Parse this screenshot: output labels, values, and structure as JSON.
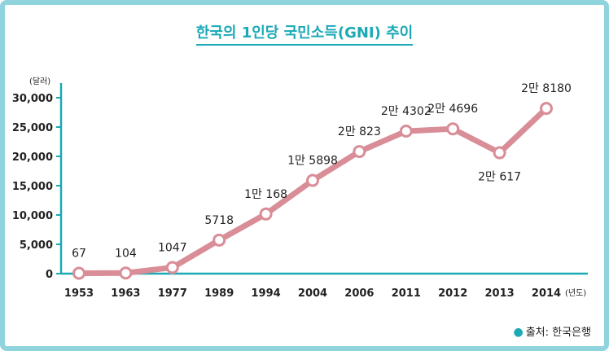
{
  "chart_data": {
    "type": "line",
    "title": "한국의 1인당 국민소득(GNI) 추이",
    "ylabel": "(달러)",
    "xlabel": "(년도)",
    "categories": [
      "1953",
      "1963",
      "1977",
      "1989",
      "1994",
      "2004",
      "2006",
      "2011",
      "2012",
      "2013",
      "2014"
    ],
    "values": [
      67,
      104,
      1047,
      5718,
      10168,
      15898,
      20823,
      24302,
      24696,
      20617,
      28180
    ],
    "data_labels": [
      "67",
      "104",
      "1047",
      "5718",
      "1만 168",
      "1만 5898",
      "2만 823",
      "2만 4302",
      "2만 4696",
      "2만 617",
      "2만 8180"
    ],
    "y_ticks": [
      "0",
      "5,000",
      "10,000",
      "15,000",
      "20,000",
      "25,000",
      "30,000"
    ],
    "ylim": [
      0,
      30000
    ],
    "grid": false,
    "colors": {
      "line": "#d98d97",
      "marker_fill": "#ffffff",
      "axis": "#1aa9b5",
      "title": "#1aa9b5"
    }
  },
  "source": {
    "label": "출처: 한국은행"
  }
}
